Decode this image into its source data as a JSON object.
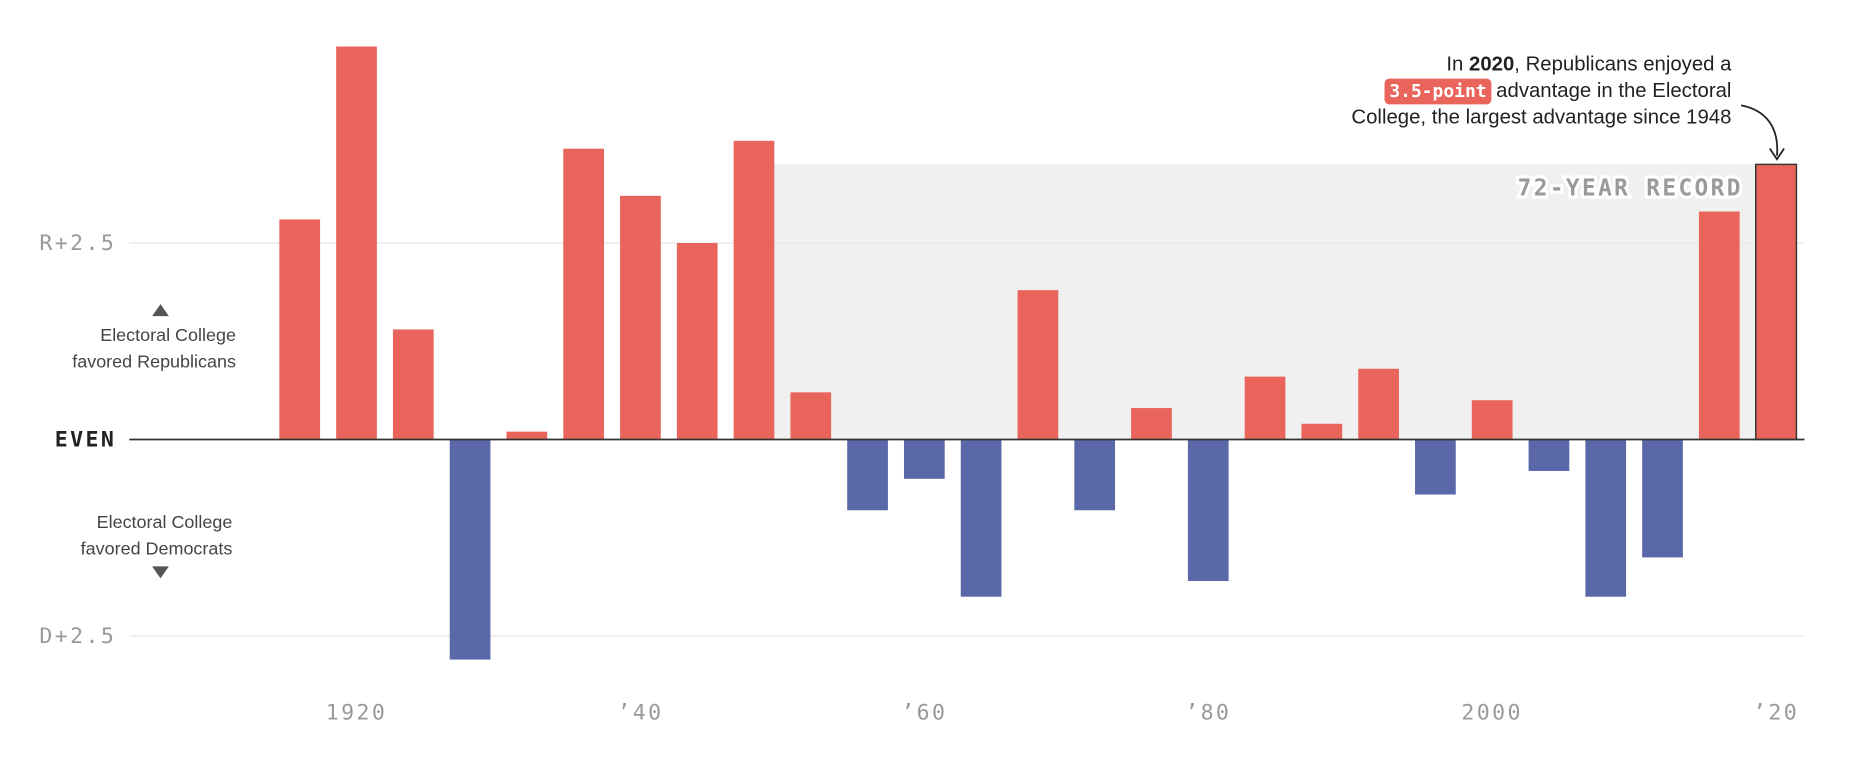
{
  "chart_data": {
    "type": "bar",
    "x": [
      1916,
      1920,
      1924,
      1928,
      1932,
      1936,
      1940,
      1944,
      1948,
      1952,
      1956,
      1960,
      1964,
      1968,
      1972,
      1976,
      1980,
      1984,
      1988,
      1992,
      1996,
      2000,
      2004,
      2008,
      2012,
      2016,
      2020
    ],
    "values": [
      2.8,
      5.0,
      1.4,
      -2.8,
      0.1,
      3.7,
      3.1,
      2.5,
      3.8,
      0.6,
      -0.9,
      -0.5,
      -2.0,
      1.9,
      -0.9,
      0.4,
      -1.8,
      0.8,
      0.2,
      0.9,
      -0.7,
      0.5,
      -0.4,
      -2.0,
      -1.5,
      2.9,
      3.5
    ],
    "positive_color": "#e9645a",
    "negative_color": "#5a67a8",
    "xlim": [
      1904,
      2022
    ],
    "ylim": [
      -3,
      5.5
    ],
    "xticks": [
      1920,
      {
        "value": 1940,
        "label": "’40"
      },
      {
        "value": 1960,
        "label": "’60"
      },
      {
        "value": 1980,
        "label": "’80"
      },
      2000,
      {
        "value": 2020,
        "label": "’20"
      }
    ],
    "yticks": [
      {
        "value": 2.5,
        "label": "R+2.5"
      },
      {
        "value": 0,
        "label": "EVEN"
      },
      {
        "value": -2.5,
        "label": "D+2.5"
      }
    ],
    "grid": true,
    "record_label": "72-YEAR RECORD",
    "annotation": [
      "In ",
      "2020",
      ", Republicans enjoyed a",
      "3.5-point",
      "advantage in the Electoral",
      "College, the largest advantage since 1948"
    ],
    "republican_note": [
      "Electoral College",
      "favored Republicans"
    ],
    "democrat_note": [
      "Electoral College",
      "favored Democrats"
    ]
  }
}
